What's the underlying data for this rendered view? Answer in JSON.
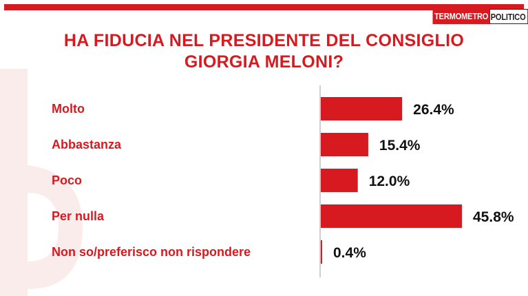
{
  "brand": {
    "logo_part1": "TERMOMETRO",
    "logo_part2": "POLITICO",
    "accent": "#d71920"
  },
  "title_line1": "HA FIDUCIA NEL PRESIDENTE DEL CONSIGLIO",
  "title_line2": "GIORGIA MELONI?",
  "chart_data": {
    "type": "bar",
    "orientation": "horizontal",
    "title": "HA FIDUCIA NEL PRESIDENTE DEL CONSIGLIO GIORGIA MELONI?",
    "categories": [
      "Molto",
      "Abbastanza",
      "Poco",
      "Per nulla",
      "Non so/preferisco non rispondere"
    ],
    "values": [
      26.4,
      15.4,
      12.0,
      45.8,
      0.4
    ],
    "value_labels": [
      "26.4%",
      "15.4%",
      "12.0%",
      "45.8%",
      "0.4%"
    ],
    "xlim": [
      0,
      50
    ],
    "bar_color": "#d71920",
    "grid": false,
    "legend": "none"
  }
}
